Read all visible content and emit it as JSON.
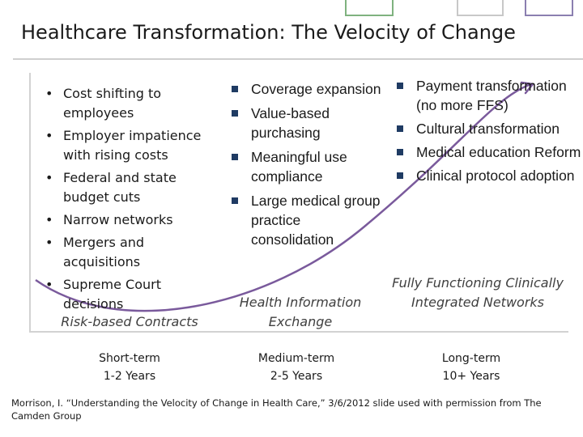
{
  "title": "Healthcare Transformation: The Velocity of Change",
  "columns": [
    {
      "items": [
        "Cost shifting to employees",
        "Employer impatience with rising costs",
        "Federal and state budget cuts",
        "Narrow networks",
        "Mergers and acquisitions",
        "Supreme Court decisions"
      ],
      "stage": "Risk-based Contracts",
      "timeframe": "Short-term",
      "duration": "1-2 Years"
    },
    {
      "items": [
        "Coverage expansion",
        "Value-based purchasing",
        "Meaningful use compliance",
        "Large medical group practice consolidation"
      ],
      "stage": "Health Information Exchange",
      "timeframe": "Medium-term",
      "duration": "2-5 Years"
    },
    {
      "items": [
        "Payment transformation (no more FFS)",
        "Cultural transformation",
        "Medical education Reform",
        "Clinical protocol adoption"
      ],
      "stage": "Fully Functioning Clinically Integrated Networks",
      "timeframe": "Long-term",
      "duration": "10+ Years"
    }
  ],
  "citation": "Morrison, I. “Understanding the Velocity of Change in Health Care,” 3/6/2012 slide used with permission from The Camden Group",
  "colors": {
    "curve": "#7a5a9c",
    "bullet_square": "#1f3b63",
    "frame": "#d2d2d2",
    "deco_green": "#7fb27f",
    "deco_gray": "#c8c8c8",
    "deco_purple": "#8b7fb0"
  }
}
